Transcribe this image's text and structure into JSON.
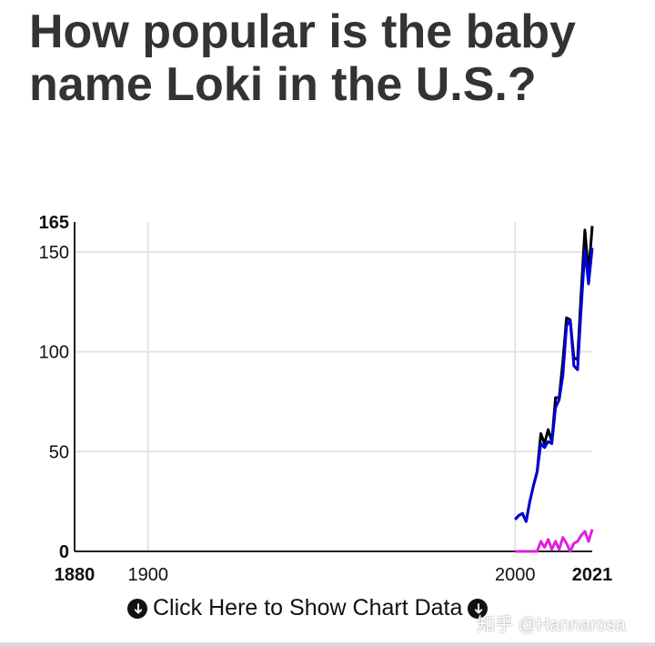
{
  "title": "How popular is the baby name Loki in the U.S.?",
  "show_data_label": "Click Here to Show Chart Data",
  "watermark": "知乎 @Hannarosa",
  "chart_data": {
    "type": "line",
    "title": "How popular is the baby name Loki in the U.S.?",
    "xlim": [
      1880,
      2021
    ],
    "ylim": [
      0,
      165
    ],
    "x_ticks": [
      {
        "v": 1880,
        "label": "1880",
        "bold": true
      },
      {
        "v": 1900,
        "label": "1900",
        "bold": false
      },
      {
        "v": 2000,
        "label": "2000",
        "bold": false
      },
      {
        "v": 2021,
        "label": "2021",
        "bold": true
      }
    ],
    "y_ticks": [
      {
        "v": 0,
        "label": "0",
        "bold": true
      },
      {
        "v": 50,
        "label": "50",
        "bold": false
      },
      {
        "v": 100,
        "label": "100",
        "bold": false
      },
      {
        "v": 150,
        "label": "150",
        "bold": false
      },
      {
        "v": 165,
        "label": "165",
        "bold": true
      }
    ],
    "grid": true,
    "x": [
      2000,
      2001,
      2002,
      2003,
      2004,
      2005,
      2006,
      2007,
      2008,
      2009,
      2010,
      2011,
      2012,
      2013,
      2014,
      2015,
      2016,
      2017,
      2018,
      2019,
      2020,
      2021
    ],
    "series": [
      {
        "color": "#000000",
        "values": [
          16,
          18,
          19,
          15,
          25,
          33,
          40,
          59,
          54,
          61,
          55,
          77,
          77,
          95,
          117,
          116,
          97,
          96,
          130,
          161,
          139,
          163
        ]
      },
      {
        "color": "#0000dd",
        "values": [
          16,
          18,
          19,
          15,
          25,
          33,
          40,
          54,
          52,
          55,
          54,
          72,
          76,
          88,
          113,
          116,
          93,
          91,
          122,
          151,
          134,
          152
        ]
      },
      {
        "color": "#e020e0",
        "values": [
          0,
          0,
          0,
          0,
          0,
          0,
          0,
          5,
          2,
          6,
          1,
          5,
          1,
          7,
          4,
          0,
          4,
          5,
          8,
          10,
          5,
          11
        ]
      }
    ]
  }
}
